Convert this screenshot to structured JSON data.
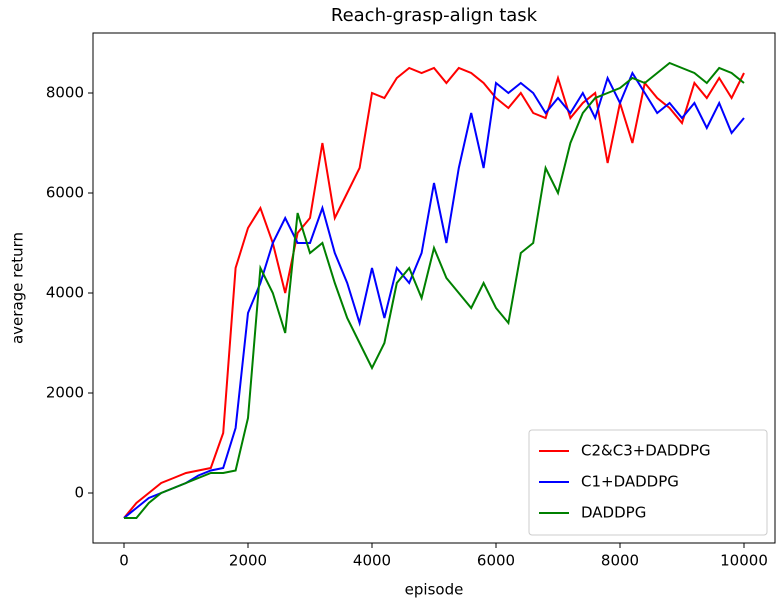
{
  "chart_data": {
    "type": "line",
    "title": "Reach-grasp-align task",
    "xlabel": "episode",
    "ylabel": "average return",
    "x": [
      0,
      200,
      400,
      600,
      800,
      1000,
      1200,
      1400,
      1600,
      1800,
      2000,
      2200,
      2400,
      2600,
      2800,
      3000,
      3200,
      3400,
      3600,
      3800,
      4000,
      4200,
      4400,
      4600,
      4800,
      5000,
      5200,
      5400,
      5600,
      5800,
      6000,
      6200,
      6400,
      6600,
      6800,
      7000,
      7200,
      7400,
      7600,
      7800,
      8000,
      8200,
      8400,
      8600,
      8800,
      9000,
      9200,
      9400,
      9600,
      9800,
      10000
    ],
    "series": [
      {
        "name": "C2&C3+DADDPG",
        "color": "#ff0000",
        "values": [
          -500,
          -200,
          0,
          200,
          300,
          400,
          450,
          500,
          1200,
          4500,
          5300,
          5700,
          5000,
          4000,
          5200,
          5500,
          7000,
          5500,
          6000,
          6500,
          8000,
          7900,
          8300,
          8500,
          8400,
          8500,
          8200,
          8500,
          8400,
          8200,
          7900,
          7700,
          8000,
          7600,
          7500,
          8300,
          7500,
          7800,
          8000,
          6600,
          7800,
          7000,
          8200,
          7900,
          7700,
          7400,
          8200,
          7900,
          8300,
          7900,
          8400
        ]
      },
      {
        "name": "C1+DADDPG",
        "color": "#0000ff",
        "values": [
          -500,
          -300,
          -100,
          0,
          100,
          200,
          350,
          450,
          500,
          1300,
          3600,
          4200,
          5000,
          5500,
          5000,
          5000,
          5700,
          4800,
          4200,
          3400,
          4500,
          3500,
          4500,
          4200,
          4800,
          6200,
          5000,
          6500,
          7600,
          6500,
          8200,
          8000,
          8200,
          8000,
          7600,
          7900,
          7600,
          8000,
          7500,
          8300,
          7800,
          8400,
          8000,
          7600,
          7800,
          7500,
          7800,
          7300,
          7800,
          7200,
          7500
        ]
      },
      {
        "name": "DADDPG",
        "color": "#008000",
        "values": [
          -500,
          -500,
          -200,
          0,
          100,
          200,
          300,
          400,
          400,
          450,
          1500,
          4500,
          4000,
          3200,
          5600,
          4800,
          5000,
          4200,
          3500,
          3000,
          2500,
          3000,
          4200,
          4500,
          3900,
          4900,
          4300,
          4000,
          3700,
          4200,
          3700,
          3400,
          4800,
          5000,
          6500,
          6000,
          7000,
          7600,
          7900,
          8000,
          8100,
          8300,
          8200,
          8400,
          8600,
          8500,
          8400,
          8200,
          8500,
          8400,
          8200
        ]
      }
    ],
    "xlim": [
      -500,
      10500
    ],
    "ylim": [
      -1000,
      9200
    ],
    "xticks": [
      0,
      2000,
      4000,
      6000,
      8000,
      10000
    ],
    "yticks": [
      0,
      2000,
      4000,
      6000,
      8000
    ],
    "legend": "lower right"
  }
}
